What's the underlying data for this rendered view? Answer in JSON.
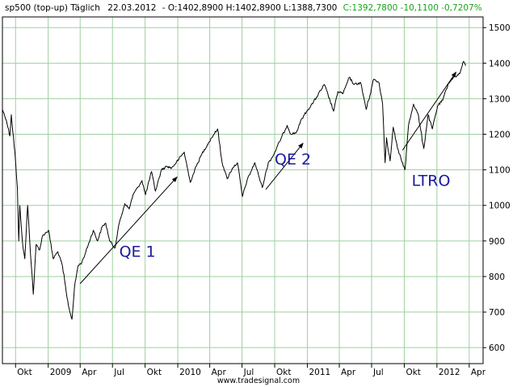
{
  "header": {
    "symbol": "sp500 (top-up) Täglich",
    "date": "22.03.2012",
    "ohl": "- O:1402,8900 H:1402,8900 L:1388,7300",
    "close": "C:1392,7800 -10,1100 -0,7207%",
    "close_color": "#17a317"
  },
  "footer_text": "www.tradesignal.com",
  "colors": {
    "grid": "#9fcf9f",
    "price": "#000000",
    "annotation": "#1a1aa0"
  },
  "chart_data": {
    "type": "line",
    "title": "",
    "x_tick_labels": [
      "Okt",
      "2009",
      "Apr",
      "Jul",
      "Okt",
      "2010",
      "Apr",
      "Jul",
      "Okt",
      "2011",
      "Apr",
      "Jul",
      "Okt",
      "2012",
      "Apr"
    ],
    "x_tick_dates": [
      "2008-10-01",
      "2009-01-01",
      "2009-04-01",
      "2009-07-01",
      "2009-10-01",
      "2010-01-01",
      "2010-04-01",
      "2010-07-01",
      "2010-10-01",
      "2011-01-01",
      "2011-04-01",
      "2011-07-01",
      "2011-10-01",
      "2012-01-01",
      "2012-04-01"
    ],
    "x_range": [
      "2008-08-25",
      "2012-05-10"
    ],
    "y_ticks": [
      600,
      700,
      800,
      900,
      1000,
      1100,
      1200,
      1300,
      1400,
      1500
    ],
    "y_tick_labels": [
      "600",
      "700",
      "800",
      "900",
      "1000",
      "1100",
      "1200",
      "1300",
      "1400",
      "1500"
    ],
    "ylim": [
      555,
      1530
    ],
    "grid": true,
    "series": [
      {
        "x": [
          "2008-08-25",
          "2008-09-05",
          "2008-09-15",
          "2008-09-19",
          "2008-09-29",
          "2008-10-06",
          "2008-10-10",
          "2008-10-13",
          "2008-10-22",
          "2008-10-27",
          "2008-11-04",
          "2008-11-10",
          "2008-11-20",
          "2008-11-28",
          "2008-12-08",
          "2008-12-16",
          "2009-01-02",
          "2009-01-15",
          "2009-01-28",
          "2009-02-10",
          "2009-02-23",
          "2009-03-03",
          "2009-03-09",
          "2009-03-16",
          "2009-03-26",
          "2009-04-06",
          "2009-04-17",
          "2009-05-08",
          "2009-05-20",
          "2009-06-02",
          "2009-06-12",
          "2009-06-23",
          "2009-07-08",
          "2009-07-20",
          "2009-08-05",
          "2009-08-17",
          "2009-08-28",
          "2009-09-10",
          "2009-09-22",
          "2009-10-02",
          "2009-10-19",
          "2009-10-30",
          "2009-11-16",
          "2009-12-01",
          "2009-12-15",
          "2010-01-04",
          "2010-01-19",
          "2010-02-05",
          "2010-02-22",
          "2010-03-10",
          "2010-03-25",
          "2010-04-06",
          "2010-04-23",
          "2010-05-06",
          "2010-05-20",
          "2010-06-04",
          "2010-06-18",
          "2010-07-02",
          "2010-07-15",
          "2010-08-06",
          "2010-08-27",
          "2010-09-13",
          "2010-09-27",
          "2010-10-15",
          "2010-11-05",
          "2010-11-16",
          "2010-12-01",
          "2010-12-17",
          "2011-01-03",
          "2011-01-18",
          "2011-02-18",
          "2011-03-16",
          "2011-03-28",
          "2011-04-12",
          "2011-04-29",
          "2011-05-13",
          "2011-05-31",
          "2011-06-16",
          "2011-07-07",
          "2011-07-22",
          "2011-08-01",
          "2011-08-08",
          "2011-08-12",
          "2011-08-22",
          "2011-08-31",
          "2011-09-12",
          "2011-09-22",
          "2011-10-03",
          "2011-10-13",
          "2011-10-27",
          "2011-11-08",
          "2011-11-25",
          "2011-12-07",
          "2011-12-19",
          "2012-01-03",
          "2012-01-17",
          "2012-02-03",
          "2012-02-17",
          "2012-03-05",
          "2012-03-16",
          "2012-03-22"
        ],
        "values": [
          1270,
          1240,
          1195,
          1255,
          1150,
          1050,
          900,
          1000,
          880,
          850,
          1000,
          900,
          750,
          890,
          875,
          915,
          930,
          850,
          870,
          830,
          740,
          700,
          680,
          770,
          830,
          840,
          870,
          930,
          900,
          940,
          950,
          900,
          880,
          950,
          1005,
          990,
          1030,
          1050,
          1070,
          1030,
          1095,
          1040,
          1100,
          1110,
          1105,
          1130,
          1150,
          1065,
          1110,
          1145,
          1170,
          1190,
          1215,
          1120,
          1075,
          1105,
          1120,
          1025,
          1070,
          1120,
          1050,
          1120,
          1140,
          1180,
          1225,
          1200,
          1205,
          1245,
          1270,
          1290,
          1340,
          1265,
          1320,
          1315,
          1360,
          1340,
          1345,
          1270,
          1355,
          1345,
          1285,
          1120,
          1190,
          1125,
          1220,
          1160,
          1130,
          1100,
          1225,
          1285,
          1260,
          1160,
          1255,
          1215,
          1280,
          1295,
          1345,
          1360,
          1370,
          1405,
          1393
        ]
      }
    ],
    "annotations": [
      {
        "label": "QE 1",
        "from": [
          "2009-04-01",
          780
        ],
        "to": [
          "2009-12-30",
          1080
        ],
        "text_at": [
          "2009-07-20",
          855
        ]
      },
      {
        "label": "QE 2",
        "from": [
          "2010-09-06",
          1045
        ],
        "to": [
          "2010-12-20",
          1175
        ],
        "text_at": [
          "2010-10-01",
          1115
        ]
      },
      {
        "label": "LTRO",
        "from": [
          "2011-09-26",
          1155
        ],
        "to": [
          "2012-02-24",
          1375
        ],
        "text_at": [
          "2011-10-22",
          1055
        ]
      }
    ]
  }
}
